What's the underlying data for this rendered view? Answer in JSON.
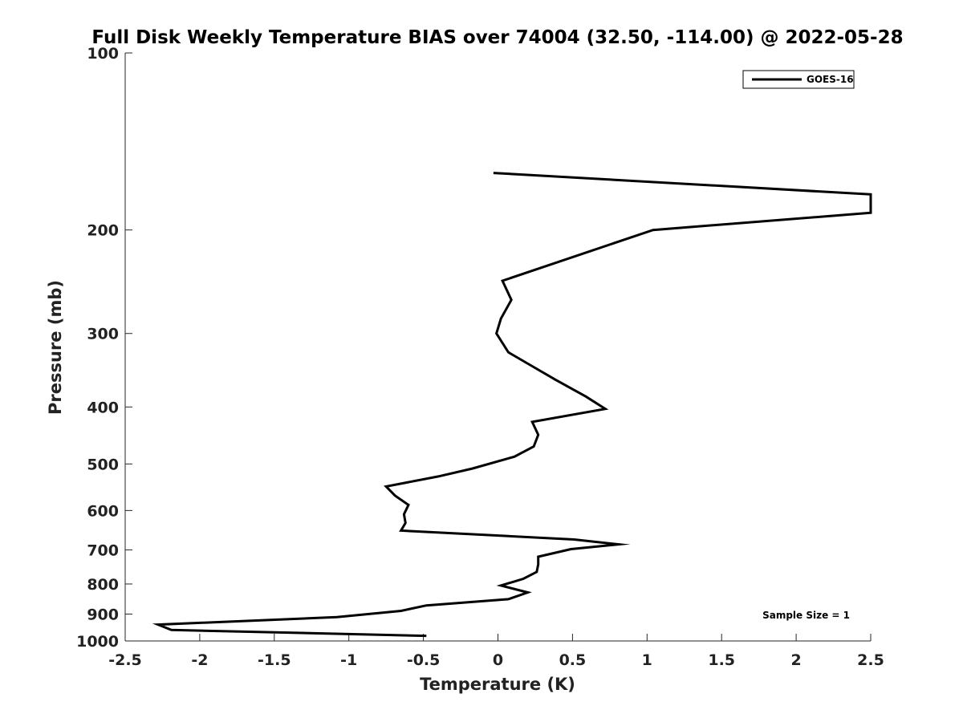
{
  "chart_data": {
    "type": "line",
    "title": "Full Disk Weekly Temperature BIAS over 74004 (32.50, -114.00) @ 2022-05-28",
    "xlabel": "Temperature (K)",
    "ylabel": "Pressure (mb)",
    "xlim": [
      -2.5,
      2.5
    ],
    "ylim": [
      100,
      1000
    ],
    "y_scale": "log",
    "y_reversed": true,
    "x_ticks": [
      "-2.5",
      "-2",
      "-1.5",
      "-1",
      "-0.5",
      "0",
      "0.5",
      "1",
      "1.5",
      "2",
      "2.5"
    ],
    "x_tick_values": [
      -2.5,
      -2,
      -1.5,
      -1,
      -0.5,
      0,
      0.5,
      1,
      1.5,
      2,
      2.5
    ],
    "y_ticks": [
      "100",
      "200",
      "300",
      "400",
      "500",
      "600",
      "700",
      "800",
      "900",
      "1000"
    ],
    "y_tick_values": [
      100,
      200,
      300,
      400,
      500,
      600,
      700,
      800,
      900,
      1000
    ],
    "grid": false,
    "legend_position": "top-right",
    "annotation": "Sample Size = 1",
    "line_color": "#000000",
    "series": [
      {
        "name": "GOES-16",
        "points": [
          [
            -0.03,
            160
          ],
          [
            2.5,
            174
          ],
          [
            2.5,
            187
          ],
          [
            1.04,
            200
          ],
          [
            0.03,
            244
          ],
          [
            0.09,
            263
          ],
          [
            0.02,
            283
          ],
          [
            -0.01,
            300
          ],
          [
            0.07,
            323
          ],
          [
            0.23,
            341
          ],
          [
            0.39,
            360
          ],
          [
            0.59,
            384
          ],
          [
            0.72,
            403
          ],
          [
            0.23,
            424
          ],
          [
            0.27,
            446
          ],
          [
            0.24,
            467
          ],
          [
            0.11,
            486
          ],
          [
            -0.17,
            509
          ],
          [
            -0.4,
            525
          ],
          [
            -0.75,
            546
          ],
          [
            -0.69,
            566
          ],
          [
            -0.6,
            587
          ],
          [
            -0.63,
            609
          ],
          [
            -0.62,
            630
          ],
          [
            -0.65,
            649
          ],
          [
            0.51,
            672
          ],
          [
            0.81,
            685
          ],
          [
            0.49,
            698
          ],
          [
            0.27,
            719
          ],
          [
            0.27,
            741
          ],
          [
            0.26,
            763
          ],
          [
            0.17,
            784
          ],
          [
            0.02,
            805
          ],
          [
            0.2,
            827
          ],
          [
            0.07,
            849
          ],
          [
            -0.48,
            870
          ],
          [
            -0.65,
            889
          ],
          [
            -1.08,
            911
          ],
          [
            -2.28,
            938
          ],
          [
            -2.19,
            958
          ],
          [
            -0.48,
            980
          ]
        ]
      }
    ]
  }
}
